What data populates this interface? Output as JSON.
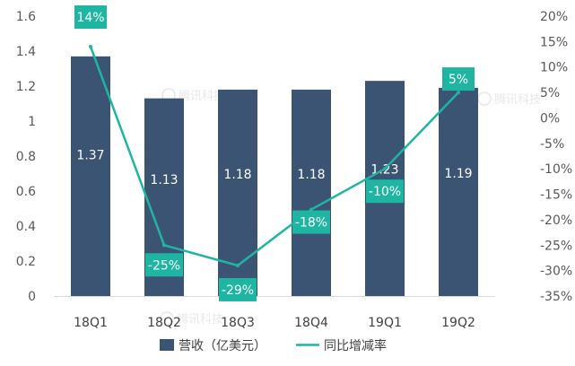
{
  "chart_data": {
    "type": "bar",
    "categories": [
      "18Q1",
      "18Q2",
      "18Q3",
      "18Q4",
      "19Q1",
      "19Q2"
    ],
    "series": [
      {
        "name": "营收（亿美元）",
        "type": "bar",
        "axis": "left",
        "values": [
          1.37,
          1.13,
          1.18,
          1.18,
          1.23,
          1.19
        ],
        "labels": [
          "1.37",
          "1.13",
          "1.18",
          "1.18",
          "1.23",
          "1.19"
        ]
      },
      {
        "name": "同比增减率",
        "type": "line",
        "axis": "right",
        "values": [
          14,
          -25,
          -29,
          -18,
          -10,
          5
        ],
        "labels": [
          "14%",
          "-25%",
          "-29%",
          "-18%",
          "-10%",
          "5%"
        ]
      }
    ],
    "y_left": {
      "range": [
        0,
        1.6
      ],
      "ticks": [
        "1.6",
        "1.4",
        "1.2",
        "1",
        "0.8",
        "0.6",
        "0.4",
        "0.2",
        "0"
      ]
    },
    "y_right": {
      "range": [
        -35,
        20
      ],
      "ticks": [
        "20%",
        "15%",
        "10%",
        "5%",
        "0%",
        "-5%",
        "-10%",
        "-15%",
        "-20%",
        "-25%",
        "-30%",
        "-35%"
      ]
    },
    "legend_position": "bottom",
    "grid": false,
    "watermark": "腾讯科技",
    "colors": {
      "bar": "#3b5473",
      "line": "#1fb5a3",
      "label_box": "#1fb5a3",
      "bar_text": "#ffffff",
      "axis_text": "#595959"
    }
  }
}
